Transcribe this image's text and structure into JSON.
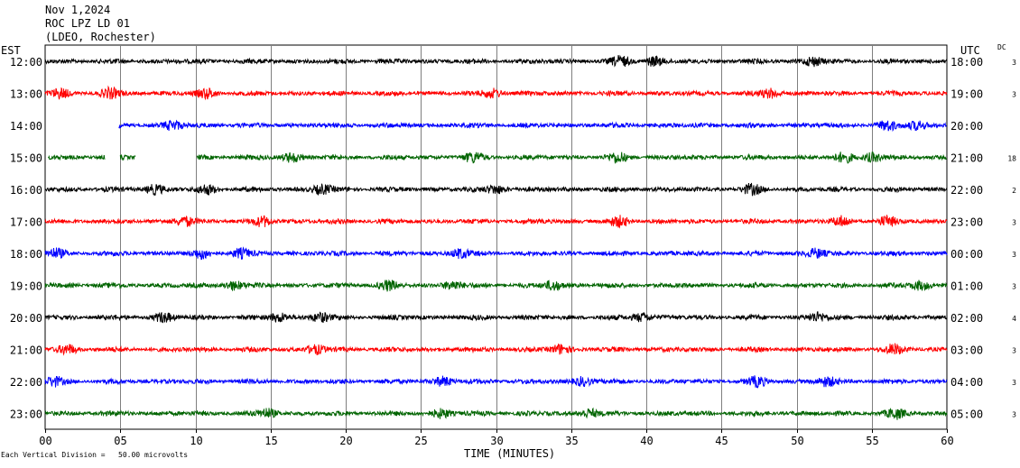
{
  "header": {
    "date": "Nov 1,2024",
    "station": "ROC LPZ LD 01",
    "network": "(LDEO, Rochester)"
  },
  "labels": {
    "left_tz": "EST",
    "right_tz": "UTC",
    "dc_header": "DC",
    "x_axis_title": "TIME (MINUTES)",
    "scale_note": "Each Vertical Division =   50.00 microvolts"
  },
  "colors": {
    "black": "#000000",
    "red": "#ff0000",
    "blue": "#0000ff",
    "green": "#006400",
    "grid": "#7f7f7f"
  },
  "chart_data": {
    "type": "line",
    "title": "ROC LPZ LD 01",
    "xlabel": "TIME (MINUTES)",
    "ylabel": "",
    "xlim": [
      0,
      60
    ],
    "x_ticks": [
      "00",
      "05",
      "10",
      "15",
      "20",
      "25",
      "30",
      "35",
      "40",
      "45",
      "50",
      "55",
      "60"
    ],
    "grid": true,
    "series": [
      {
        "local": "12:00",
        "utc": "18:00",
        "dc": "3",
        "color": "black",
        "data_start_min": 0,
        "bursts": [
          38.3,
          40.5,
          51.1
        ]
      },
      {
        "local": "13:00",
        "utc": "19:00",
        "dc": "3",
        "color": "red",
        "data_start_min": 0,
        "bursts": [
          1.0,
          4.3,
          10.8,
          29.8,
          48.3
        ]
      },
      {
        "local": "14:00",
        "utc": "20:00",
        "dc": "",
        "color": "blue",
        "data_start_min": 4.9,
        "bursts": [
          8.5,
          56.0,
          58.0
        ]
      },
      {
        "local": "15:00",
        "utc": "21:00",
        "dc": "18",
        "color": "green",
        "data_start_min": 10.1,
        "early_segments": [
          [
            0.2,
            4.0
          ],
          [
            5.0,
            6.0
          ]
        ],
        "bursts": [
          16.4,
          28.5,
          38.1,
          53.2,
          55.0
        ]
      },
      {
        "local": "16:00",
        "utc": "22:00",
        "dc": "2",
        "color": "black",
        "data_start_min": 0,
        "bursts": [
          7.3,
          10.8,
          18.4,
          30.0,
          47.0
        ]
      },
      {
        "local": "17:00",
        "utc": "23:00",
        "dc": "3",
        "color": "red",
        "data_start_min": 0,
        "bursts": [
          9.3,
          14.5,
          38.2,
          53.0,
          56.0
        ]
      },
      {
        "local": "18:00",
        "utc": "00:00",
        "dc": "3",
        "color": "blue",
        "data_start_min": 0,
        "bursts": [
          0.7,
          10.4,
          13.0,
          27.6,
          51.3
        ]
      },
      {
        "local": "19:00",
        "utc": "01:00",
        "dc": "3",
        "color": "green",
        "data_start_min": 0,
        "bursts": [
          12.5,
          22.8,
          27.1,
          33.8,
          58.2
        ]
      },
      {
        "local": "20:00",
        "utc": "02:00",
        "dc": "4",
        "color": "black",
        "data_start_min": 0,
        "bursts": [
          7.9,
          15.6,
          18.3,
          39.7,
          51.4
        ]
      },
      {
        "local": "21:00",
        "utc": "03:00",
        "dc": "3",
        "color": "red",
        "data_start_min": 0,
        "bursts": [
          1.5,
          18.0,
          34.3,
          56.5
        ]
      },
      {
        "local": "22:00",
        "utc": "04:00",
        "dc": "3",
        "color": "blue",
        "data_start_min": 0,
        "bursts": [
          0.6,
          26.5,
          35.8,
          47.4,
          52.0
        ]
      },
      {
        "local": "23:00",
        "utc": "05:00",
        "dc": "3",
        "color": "green",
        "data_start_min": 0,
        "bursts": [
          14.8,
          26.4,
          36.2,
          56.6
        ]
      }
    ]
  }
}
